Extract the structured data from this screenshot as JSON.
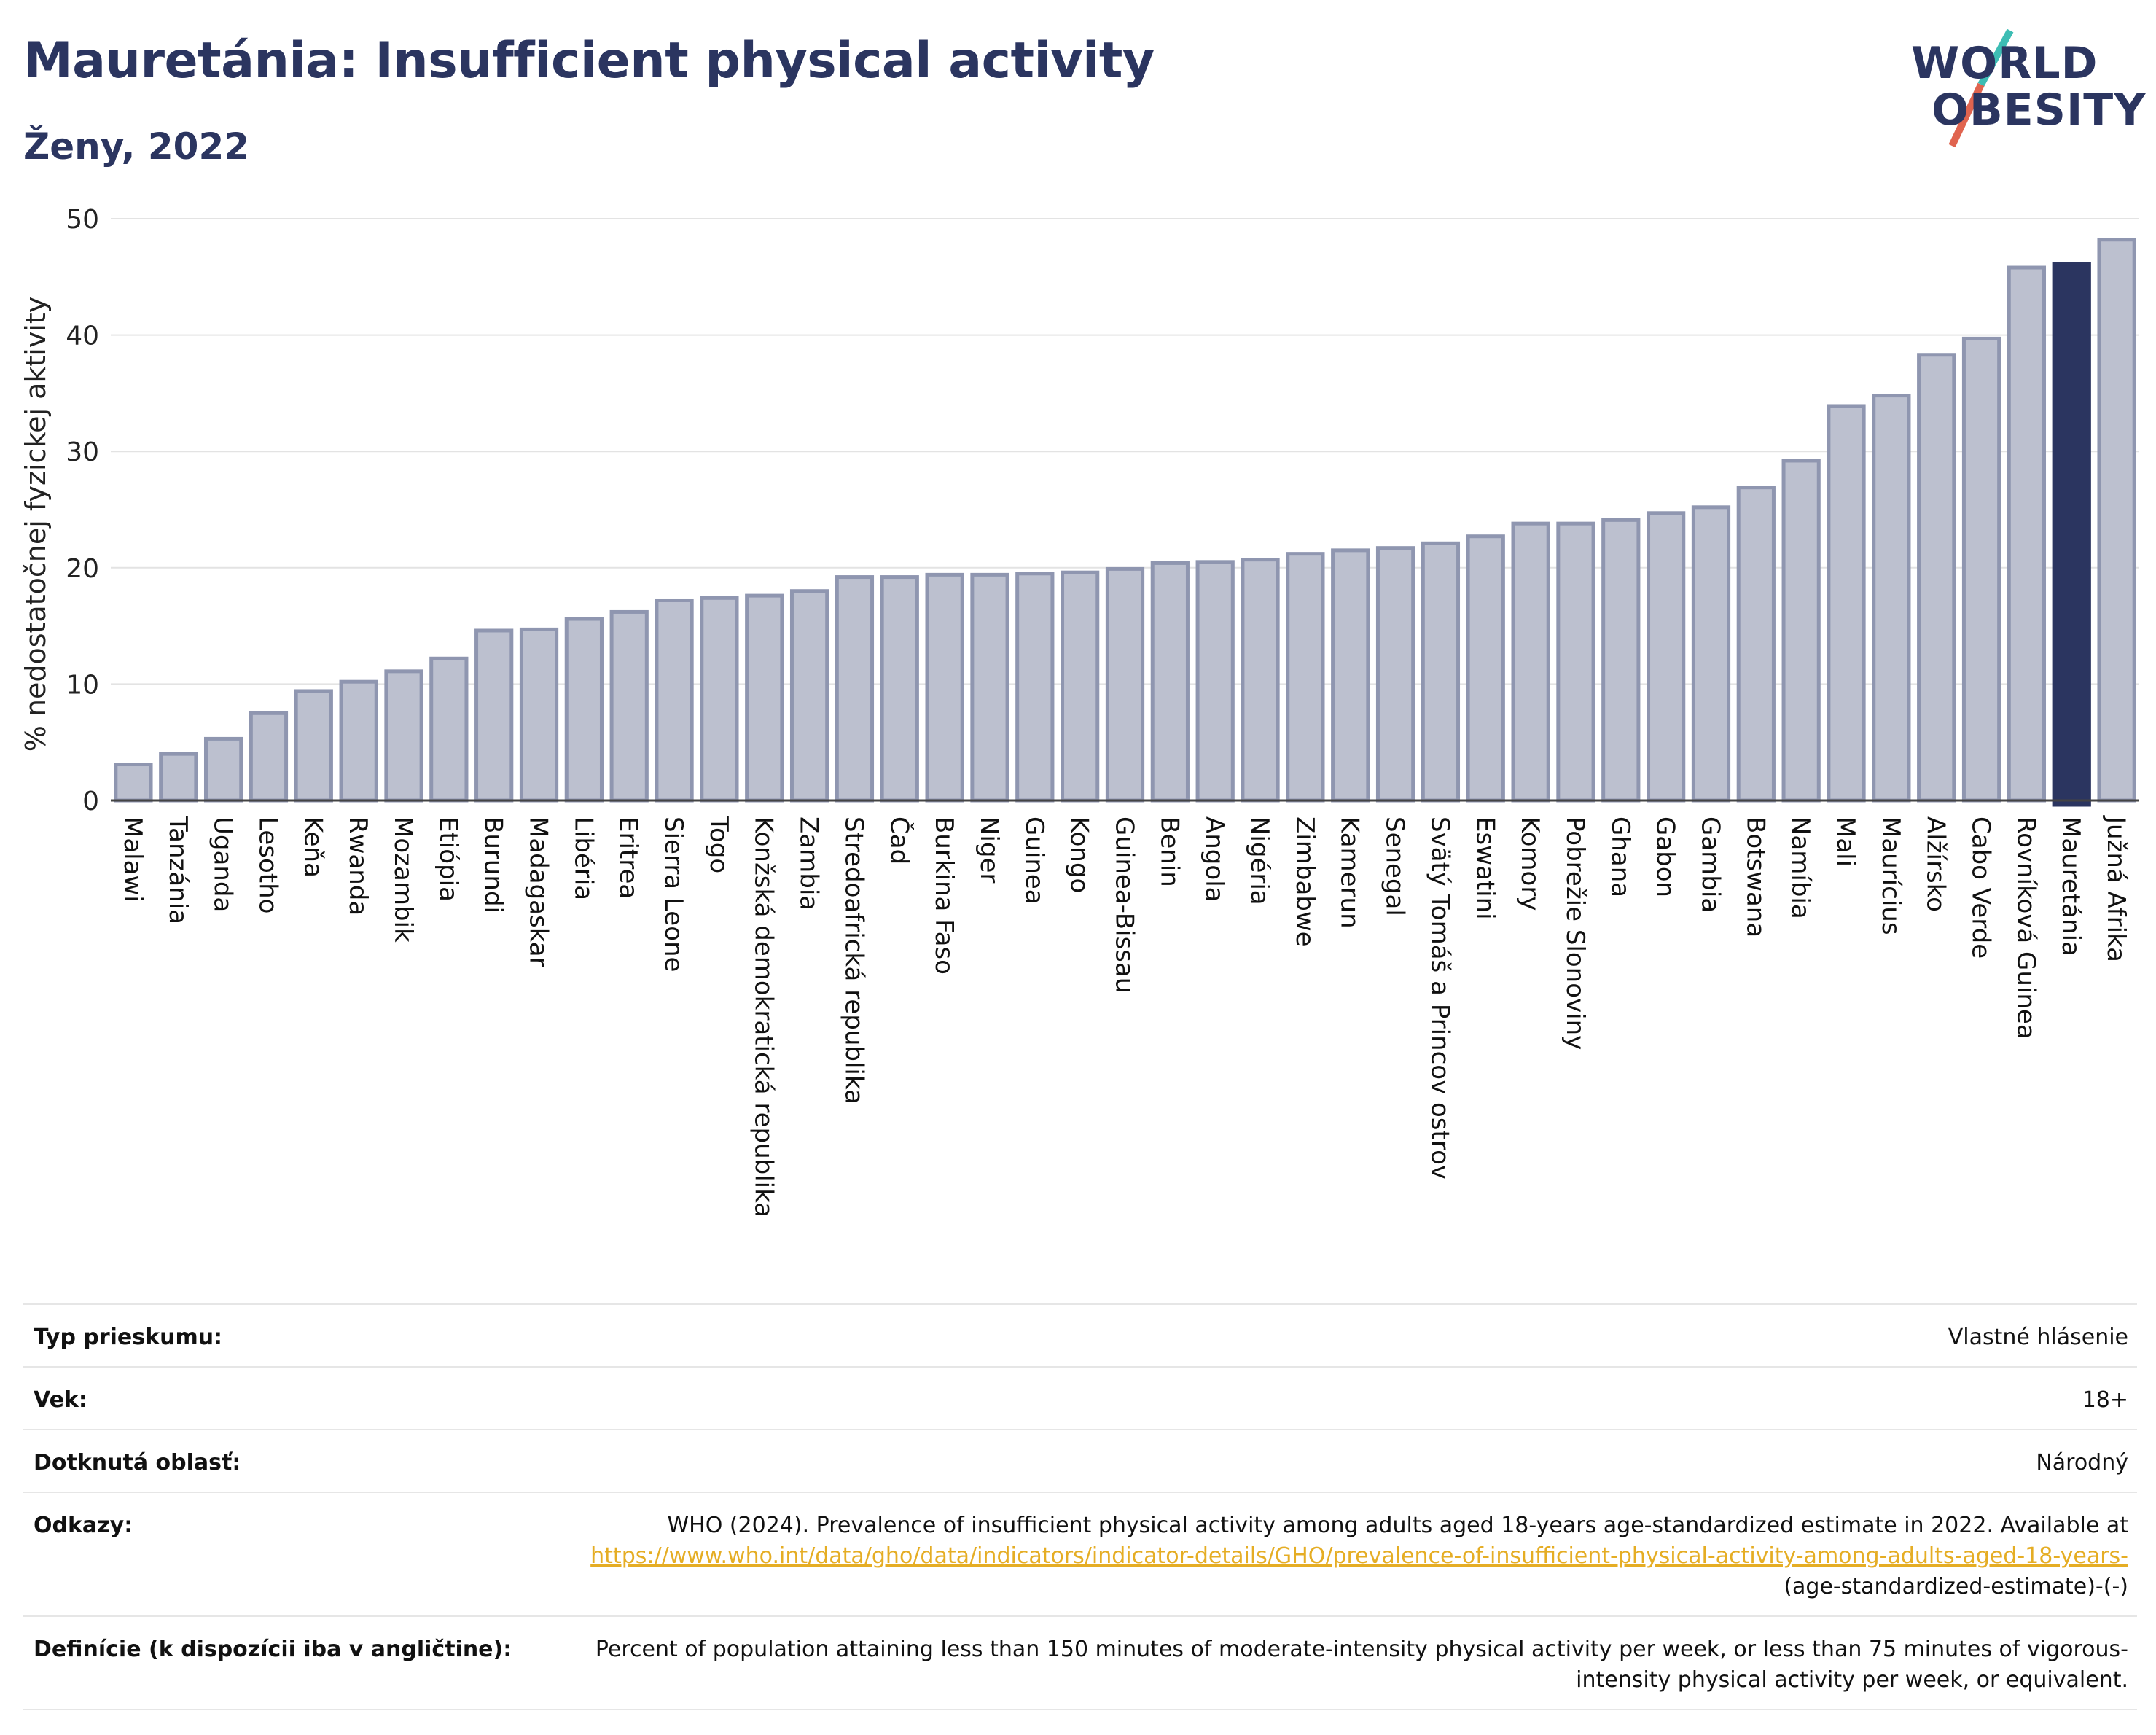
{
  "header": {
    "title": "Mauretánia: Insufficient physical activity",
    "subtitle": "Ženy, 2022",
    "logo_line1": "WORLD",
    "logo_line2": "OBESITY"
  },
  "colors": {
    "title": "#2b3560",
    "bar_default": "#bcc0cf",
    "bar_outline": "#8f96b0",
    "bar_highlight": "#2b3560",
    "logo_slash_top": "#3dbdb4",
    "logo_slash_bottom": "#e0644f",
    "link": "#e5ad24"
  },
  "chart_data": {
    "type": "bar",
    "title": "Mauretánia: Insufficient physical activity",
    "subtitle": "Ženy, 2022",
    "xlabel": "",
    "ylabel": "% nedostatočnej fyzickej aktivity",
    "ylim": [
      0,
      50
    ],
    "yticks": [
      0,
      10,
      20,
      30,
      40,
      50
    ],
    "grid": true,
    "legend": "none",
    "highlight": "Mauretánia",
    "categories": [
      "Malawi",
      "Tanzánia",
      "Uganda",
      "Lesotho",
      "Keňa",
      "Rwanda",
      "Mozambik",
      "Etiópia",
      "Burundi",
      "Madagaskar",
      "Libéria",
      "Eritrea",
      "Sierra Leone",
      "Togo",
      "Konžská demokratická republika",
      "Zambia",
      "Stredoafrická republika",
      "Čad",
      "Burkina Faso",
      "Niger",
      "Guinea",
      "Kongo",
      "Guinea-Bissau",
      "Benin",
      "Angola",
      "Nigéria",
      "Zimbabwe",
      "Kamerun",
      "Senegal",
      "Svätý Tomáš a Princov ostrov",
      "Eswatini",
      "Komory",
      "Pobrežie Slonoviny",
      "Ghana",
      "Gabon",
      "Gambia",
      "Botswana",
      "Namíbia",
      "Mali",
      "Maurícius",
      "Alžírsko",
      "Cabo Verde",
      "Rovníková Guinea",
      "Mauretánia",
      "Južná Afrika"
    ],
    "values": [
      3.1,
      4.0,
      5.3,
      7.5,
      9.4,
      10.2,
      11.1,
      12.2,
      14.6,
      14.7,
      15.6,
      16.2,
      17.2,
      17.4,
      17.6,
      18.0,
      19.2,
      19.2,
      19.4,
      19.4,
      19.5,
      19.6,
      19.9,
      20.4,
      20.5,
      20.7,
      21.2,
      21.5,
      21.7,
      22.1,
      22.7,
      23.8,
      23.8,
      24.1,
      24.7,
      25.2,
      26.9,
      29.2,
      33.9,
      34.8,
      38.3,
      39.7,
      45.8,
      46.1,
      48.2
    ]
  },
  "meta": {
    "survey_type_label": "Typ prieskumu:",
    "survey_type_value": "Vlastné hlásenie",
    "age_label": "Vek:",
    "age_value": "18+",
    "area_label": "Dotknutá oblasť:",
    "area_value": "Národný",
    "references_label": "Odkazy:",
    "references_text": "WHO (2024). Prevalence of insufficient physical activity among adults aged 18-years age-standardized estimate in 2022. Available at",
    "references_link": "https://www.who.int/data/gho/data/indicators/indicator-details/GHO/prevalence-of-insufficient-physical-activity-among-adults-aged-18-years-",
    "references_suffix": "(age-standardized-estimate)-(-)",
    "definitions_label": "Definície (k dispozícii iba v angličtine):",
    "definitions_value": "Percent of population attaining less than 150 minutes of moderate-intensity physical activity per week, or less than 75 minutes of vigorous-intensity physical activity per week, or equivalent."
  }
}
